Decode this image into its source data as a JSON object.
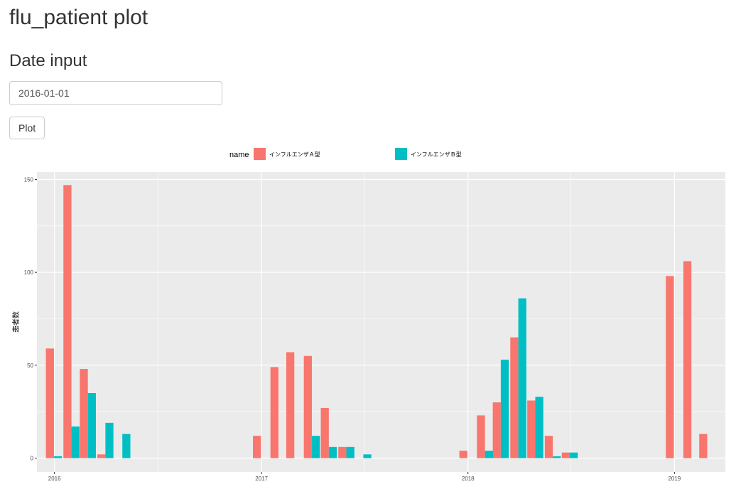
{
  "page": {
    "title": "flu_patient plot"
  },
  "form": {
    "section_title": "Date input",
    "date_value": "2016-01-01",
    "plot_label": "Plot"
  },
  "chart_data": {
    "type": "bar",
    "ylabel": "患者数",
    "ylim": [
      0,
      155
    ],
    "y_ticks": [
      0,
      50,
      100,
      150
    ],
    "x_ticks": [
      "2016",
      "2017",
      "2018",
      "2019"
    ],
    "x_domain": [
      "2015-12-01",
      "2019-04-01"
    ],
    "grid": true,
    "legend": {
      "title": "name",
      "position": "top"
    },
    "colors": {
      "A": "#F8766D",
      "B": "#00BFC4",
      "panel": "#EBEBEB",
      "grid": "#FFFFFF"
    },
    "series": [
      {
        "name": "インフルエンザＡ型",
        "key": "A",
        "points": [
          [
            "2015-12-31",
            59
          ],
          [
            "2016-01-31",
            147
          ],
          [
            "2016-02-29",
            48
          ],
          [
            "2016-03-31",
            2
          ],
          [
            "2016-12-31",
            12
          ],
          [
            "2017-01-31",
            49
          ],
          [
            "2017-02-28",
            57
          ],
          [
            "2017-03-31",
            55
          ],
          [
            "2017-04-30",
            27
          ],
          [
            "2017-05-31",
            6
          ],
          [
            "2017-12-31",
            4
          ],
          [
            "2018-01-31",
            23
          ],
          [
            "2018-02-28",
            30
          ],
          [
            "2018-03-31",
            65
          ],
          [
            "2018-04-30",
            31
          ],
          [
            "2018-05-31",
            12
          ],
          [
            "2018-06-30",
            3
          ],
          [
            "2018-12-31",
            98
          ],
          [
            "2019-01-31",
            106
          ],
          [
            "2019-02-28",
            13
          ]
        ]
      },
      {
        "name": "インフルエンザＢ型",
        "key": "B",
        "points": [
          [
            "2015-12-31",
            1
          ],
          [
            "2016-01-31",
            17
          ],
          [
            "2016-02-29",
            35
          ],
          [
            "2016-03-31",
            19
          ],
          [
            "2016-04-30",
            13
          ],
          [
            "2017-03-31",
            12
          ],
          [
            "2017-04-30",
            6
          ],
          [
            "2017-05-31",
            6
          ],
          [
            "2017-06-30",
            2
          ],
          [
            "2018-01-31",
            4
          ],
          [
            "2018-02-28",
            53
          ],
          [
            "2018-03-31",
            86
          ],
          [
            "2018-04-30",
            33
          ],
          [
            "2018-05-31",
            1
          ],
          [
            "2018-06-30",
            3
          ]
        ]
      }
    ]
  }
}
